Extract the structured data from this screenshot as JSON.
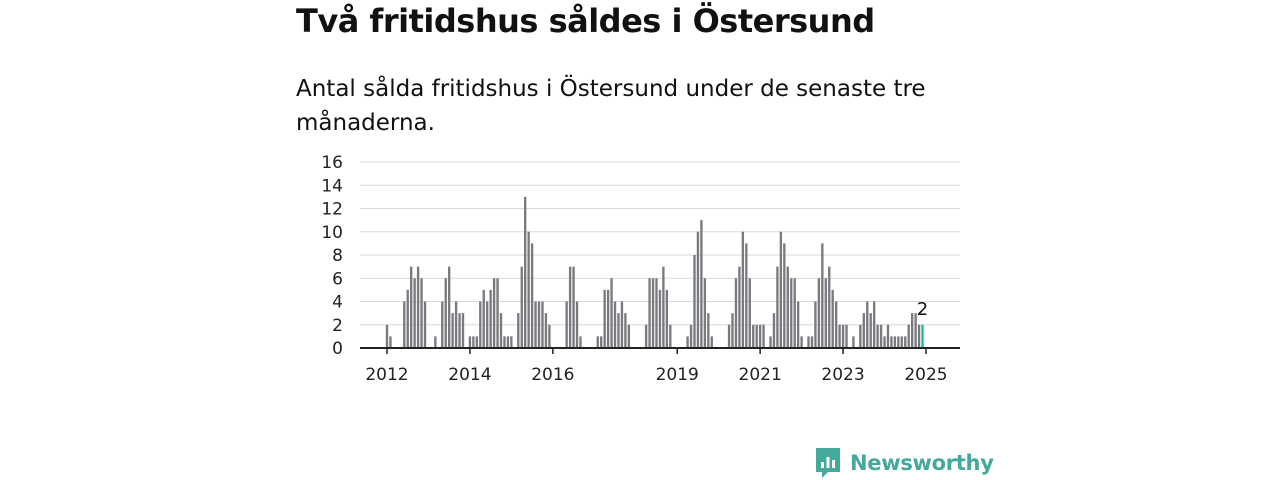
{
  "title": "Två fritidshus såldes i Östersund",
  "subtitle": "Antal sålda fritidshus i Östersund under de senaste tre månaderna.",
  "brand": {
    "name": "Newsworthy",
    "color": "#44a89b",
    "icon": "newsworthy-logo-icon"
  },
  "colors": {
    "bar": "#797a7f",
    "highlight": "#1fb5a3",
    "grid": "#d9d9d9",
    "axis": "#222222"
  },
  "chart_data": {
    "type": "bar",
    "title": "Två fritidshus såldes i Östersund",
    "xlabel": "",
    "ylabel": "",
    "ylim": [
      0,
      16
    ],
    "yticks": [
      0,
      2,
      4,
      6,
      8,
      10,
      12,
      14,
      16
    ],
    "x_start": "2012-01",
    "x_ticks": [
      {
        "label": "2012",
        "month_index": 0
      },
      {
        "label": "2014",
        "month_index": 24
      },
      {
        "label": "2016",
        "month_index": 48
      },
      {
        "label": "2019",
        "month_index": 84
      },
      {
        "label": "2021",
        "month_index": 108
      },
      {
        "label": "2023",
        "month_index": 132
      },
      {
        "label": "2025",
        "month_index": 156
      }
    ],
    "values": [
      2,
      1,
      0,
      0,
      0,
      4,
      5,
      7,
      6,
      7,
      6,
      4,
      0,
      0,
      1,
      0,
      4,
      6,
      7,
      3,
      4,
      3,
      3,
      0,
      1,
      1,
      1,
      4,
      5,
      4,
      5,
      6,
      6,
      3,
      1,
      1,
      1,
      0,
      3,
      7,
      13,
      10,
      9,
      4,
      4,
      4,
      3,
      2,
      0,
      0,
      0,
      0,
      4,
      7,
      7,
      4,
      1,
      0,
      0,
      0,
      0,
      1,
      1,
      5,
      5,
      6,
      4,
      3,
      4,
      3,
      2,
      0,
      0,
      0,
      0,
      2,
      6,
      6,
      6,
      5,
      7,
      5,
      2,
      0,
      0,
      0,
      0,
      1,
      2,
      8,
      10,
      11,
      6,
      3,
      1,
      0,
      0,
      0,
      0,
      2,
      3,
      6,
      7,
      10,
      9,
      6,
      2,
      2,
      2,
      2,
      0,
      1,
      3,
      7,
      10,
      9,
      7,
      6,
      6,
      4,
      1,
      0,
      1,
      1,
      4,
      6,
      9,
      6,
      7,
      5,
      4,
      2,
      2,
      2,
      0,
      1,
      0,
      2,
      3,
      4,
      3,
      4,
      2,
      2,
      1,
      2,
      1,
      1,
      1,
      1,
      1,
      2,
      3,
      3,
      2,
      2
    ],
    "highlight_index": 155,
    "annotation": "2"
  }
}
